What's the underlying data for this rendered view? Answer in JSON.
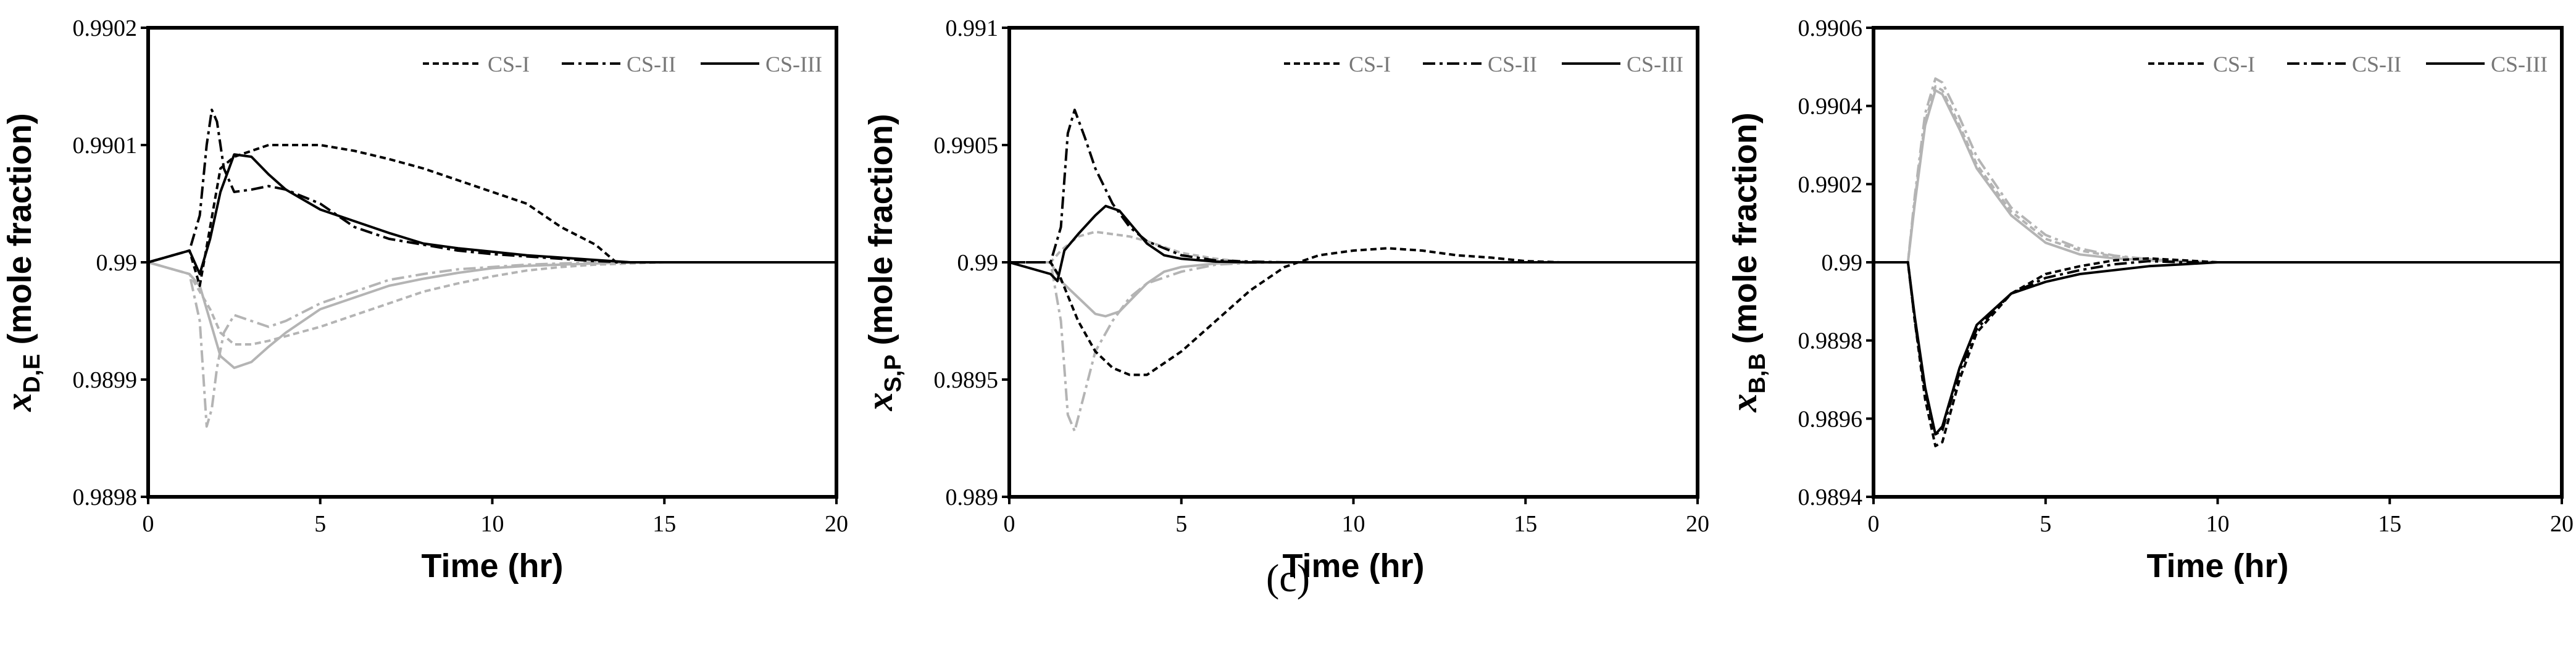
{
  "figure": {
    "caption": "(c)"
  },
  "chart_data": [
    {
      "type": "line",
      "id": "panel-1",
      "title": "",
      "xlabel": "Time (hr)",
      "ylabel_main": "x",
      "ylabel_sub": "D,E",
      "ylabel_rest": " (mole fraction)",
      "xlim": [
        0,
        20
      ],
      "ylim": [
        0.9898,
        0.9902
      ],
      "xticks": [
        0,
        5,
        10,
        15,
        20
      ],
      "yticks": [
        0.9898,
        0.9899,
        0.99,
        0.9901,
        0.9902
      ],
      "ytick_labels": [
        "0.9898",
        "0.9899",
        "0.99",
        "0.9901",
        "0.9902"
      ],
      "legend": [
        "CS-I",
        "CS-II",
        "CS-III"
      ],
      "legend_position": "top-right",
      "series": [
        {
          "name": "CS-I",
          "color": "black",
          "style": "dash",
          "x": [
            0,
            1.2,
            1.5,
            1.8,
            2.1,
            2.5,
            3,
            3.5,
            4,
            5,
            6,
            7,
            8,
            9,
            10,
            11,
            12,
            13,
            13.6,
            15,
            20
          ],
          "y": [
            0.99,
            0.99001,
            0.98998,
            0.99003,
            0.99008,
            0.99009,
            0.990095,
            0.9901,
            0.9901,
            0.9901,
            0.990095,
            0.990088,
            0.99008,
            0.99007,
            0.99006,
            0.99005,
            0.99003,
            0.990015,
            0.99,
            0.99,
            0.99
          ]
        },
        {
          "name": "CS-II",
          "color": "black",
          "style": "dashdot",
          "x": [
            0,
            1.2,
            1.5,
            1.7,
            1.85,
            2.0,
            2.2,
            2.5,
            3,
            3.5,
            4,
            5,
            6,
            7,
            8,
            9,
            10,
            11,
            12,
            13,
            14,
            20
          ],
          "y": [
            0.99,
            0.99001,
            0.99004,
            0.9901,
            0.99013,
            0.99012,
            0.99008,
            0.99006,
            0.990062,
            0.990065,
            0.990062,
            0.99005,
            0.99003,
            0.99002,
            0.990015,
            0.99001,
            0.990007,
            0.990005,
            0.990003,
            0.990001,
            0.99,
            0.99
          ]
        },
        {
          "name": "CS-III",
          "color": "black",
          "style": "solid",
          "x": [
            0,
            1.2,
            1.5,
            1.8,
            2.1,
            2.5,
            3,
            3.5,
            4,
            5,
            6,
            7,
            8,
            9,
            10,
            11,
            12,
            13,
            14,
            20
          ],
          "y": [
            0.99,
            0.99001,
            0.98999,
            0.99002,
            0.99006,
            0.990092,
            0.99009,
            0.990075,
            0.990062,
            0.990045,
            0.990035,
            0.990025,
            0.990016,
            0.990012,
            0.990009,
            0.990006,
            0.990004,
            0.990002,
            0.99,
            0.99
          ]
        },
        {
          "name": "CS-I (gray)",
          "color": "gray",
          "style": "dash",
          "x": [
            0,
            1.2,
            1.5,
            1.8,
            2.1,
            2.5,
            3,
            3.5,
            4,
            5,
            6,
            7,
            8,
            9,
            10,
            11,
            12,
            13,
            14,
            15,
            16,
            20
          ],
          "y": [
            0.99,
            0.98999,
            0.989975,
            0.98996,
            0.98994,
            0.98993,
            0.98993,
            0.989933,
            0.989937,
            0.989945,
            0.989955,
            0.989965,
            0.989975,
            0.989982,
            0.989988,
            0.989993,
            0.989996,
            0.989998,
            0.989999,
            0.99,
            0.99,
            0.99
          ]
        },
        {
          "name": "CS-II (gray)",
          "color": "gray",
          "style": "dashdot",
          "x": [
            0,
            1.2,
            1.5,
            1.7,
            1.85,
            2.0,
            2.2,
            2.5,
            3,
            3.5,
            4,
            5,
            6,
            7,
            8,
            9,
            10,
            11,
            12,
            13,
            14,
            20
          ],
          "y": [
            0.99,
            0.98999,
            0.98995,
            0.98986,
            0.989875,
            0.98991,
            0.98994,
            0.989955,
            0.98995,
            0.989945,
            0.98995,
            0.989965,
            0.989975,
            0.989985,
            0.98999,
            0.989994,
            0.989996,
            0.989998,
            0.989999,
            0.99,
            0.99,
            0.99
          ]
        },
        {
          "name": "CS-III (gray)",
          "color": "gray",
          "style": "solid",
          "x": [
            0,
            1.2,
            1.5,
            1.8,
            2.1,
            2.5,
            3,
            3.5,
            4,
            5,
            6,
            7,
            8,
            9,
            10,
            11,
            12,
            13,
            14,
            20
          ],
          "y": [
            0.99,
            0.98999,
            0.98998,
            0.98995,
            0.98992,
            0.98991,
            0.989915,
            0.989928,
            0.98994,
            0.98996,
            0.98997,
            0.98998,
            0.989986,
            0.989991,
            0.989995,
            0.989997,
            0.989998,
            0.989999,
            0.99,
            0.99
          ]
        }
      ]
    },
    {
      "type": "line",
      "id": "panel-2",
      "title": "",
      "xlabel": "Time (hr)",
      "ylabel_main": "x",
      "ylabel_sub": "S,P",
      "ylabel_rest": " (mole fraction)",
      "xlim": [
        0,
        20
      ],
      "ylim": [
        0.989,
        0.991
      ],
      "xticks": [
        0,
        5,
        10,
        15,
        20
      ],
      "yticks": [
        0.989,
        0.9895,
        0.99,
        0.9905,
        0.991
      ],
      "ytick_labels": [
        "0.989",
        "0.9895",
        "0.99",
        "0.9905",
        "0.991"
      ],
      "legend": [
        "CS-I",
        "CS-II",
        "CS-III"
      ],
      "legend_position": "top-right",
      "series": [
        {
          "name": "CS-I",
          "color": "black",
          "style": "dash",
          "x": [
            0,
            1.2,
            1.5,
            2,
            2.5,
            3,
            3.5,
            4,
            5,
            6,
            7,
            8,
            9,
            10,
            11,
            12,
            13,
            14,
            15,
            16,
            20
          ],
          "y": [
            0.99,
            0.99,
            0.98993,
            0.98975,
            0.98962,
            0.98955,
            0.98952,
            0.98952,
            0.98962,
            0.98975,
            0.98988,
            0.98998,
            0.99003,
            0.99005,
            0.99006,
            0.99005,
            0.99003,
            0.99002,
            0.990005,
            0.99,
            0.99
          ]
        },
        {
          "name": "CS-II",
          "color": "black",
          "style": "dashdot",
          "x": [
            0,
            1.2,
            1.5,
            1.7,
            1.9,
            2.2,
            2.5,
            3,
            3.5,
            4,
            5,
            6,
            7,
            8,
            20
          ],
          "y": [
            0.99,
            0.99,
            0.99015,
            0.99055,
            0.99065,
            0.99053,
            0.9904,
            0.99025,
            0.99015,
            0.99009,
            0.99003,
            0.990008,
            0.990003,
            0.99,
            0.99
          ]
        },
        {
          "name": "CS-III",
          "color": "black",
          "style": "solid",
          "x": [
            0,
            1.2,
            1.4,
            1.6,
            2,
            2.5,
            2.8,
            3.2,
            3.6,
            4,
            4.5,
            5,
            6,
            7,
            20
          ],
          "y": [
            0.99,
            0.98995,
            0.98992,
            0.99005,
            0.99012,
            0.9902,
            0.99024,
            0.99022,
            0.99015,
            0.99008,
            0.99003,
            0.990015,
            0.990003,
            0.99,
            0.99
          ]
        },
        {
          "name": "CS-I (gray)",
          "color": "gray",
          "style": "dash",
          "x": [
            0,
            1.2,
            1.5,
            2,
            2.5,
            3,
            3.5,
            4,
            5,
            6,
            7,
            20
          ],
          "y": [
            0.99,
            0.99,
            0.99005,
            0.99011,
            0.99013,
            0.99012,
            0.99011,
            0.99009,
            0.99004,
            0.990015,
            0.99,
            0.99
          ]
        },
        {
          "name": "CS-II (gray)",
          "color": "gray",
          "style": "dashdot",
          "x": [
            0,
            1.2,
            1.5,
            1.7,
            1.9,
            2.2,
            2.5,
            3,
            3.5,
            4,
            5,
            6,
            7,
            8,
            20
          ],
          "y": [
            0.99,
            0.99,
            0.98975,
            0.98935,
            0.98928,
            0.98945,
            0.98962,
            0.98975,
            0.98985,
            0.98991,
            0.98996,
            0.98999,
            0.989998,
            0.99,
            0.99
          ]
        },
        {
          "name": "CS-III (gray)",
          "color": "gray",
          "style": "solid",
          "x": [
            0,
            1.2,
            1.5,
            2,
            2.5,
            2.8,
            3.2,
            3.6,
            4,
            4.5,
            5,
            6,
            7,
            20
          ],
          "y": [
            0.99,
            0.99,
            0.98992,
            0.98985,
            0.98978,
            0.98977,
            0.98979,
            0.98985,
            0.98991,
            0.98996,
            0.98998,
            0.989995,
            0.99,
            0.99
          ]
        }
      ]
    },
    {
      "type": "line",
      "id": "panel-3",
      "title": "",
      "xlabel": "Time (hr)",
      "ylabel_main": "x",
      "ylabel_sub": "B,B",
      "ylabel_rest": " (mole fraction)",
      "xlim": [
        0,
        20
      ],
      "ylim": [
        0.9894,
        0.9906
      ],
      "xticks": [
        0,
        5,
        10,
        15,
        20
      ],
      "yticks": [
        0.9894,
        0.9896,
        0.9898,
        0.99,
        0.9902,
        0.9904,
        0.9906
      ],
      "ytick_labels": [
        "0.9894",
        "0.9896",
        "0.9898",
        "0.99",
        "0.9902",
        "0.9904",
        "0.9906"
      ],
      "legend": [
        "CS-I",
        "CS-II",
        "CS-III"
      ],
      "legend_position": "top-right",
      "series": [
        {
          "name": "CS-I",
          "color": "black",
          "style": "dash",
          "x": [
            0,
            1,
            1.2,
            1.5,
            1.8,
            2,
            2.5,
            3,
            4,
            5,
            6,
            7,
            8,
            9,
            10,
            20
          ],
          "y": [
            0.99,
            0.99,
            0.98985,
            0.98965,
            0.98953,
            0.98954,
            0.9897,
            0.98982,
            0.98992,
            0.98997,
            0.98999,
            0.990005,
            0.99001,
            0.990005,
            0.99,
            0.99
          ]
        },
        {
          "name": "CS-II",
          "color": "black",
          "style": "dashdot",
          "x": [
            0,
            1,
            1.2,
            1.5,
            1.8,
            2,
            2.5,
            3,
            4,
            5,
            6,
            7,
            8,
            9,
            10,
            20
          ],
          "y": [
            0.99,
            0.99,
            0.98985,
            0.98967,
            0.98956,
            0.98957,
            0.98972,
            0.98983,
            0.98992,
            0.98996,
            0.98998,
            0.989995,
            0.990003,
            0.99,
            0.99,
            0.99
          ]
        },
        {
          "name": "CS-III",
          "color": "black",
          "style": "solid",
          "x": [
            0,
            1,
            1.2,
            1.5,
            1.8,
            2,
            2.5,
            3,
            4,
            5,
            6,
            7,
            8,
            9,
            10,
            20
          ],
          "y": [
            0.99,
            0.99,
            0.98986,
            0.98968,
            0.98956,
            0.98958,
            0.98973,
            0.98984,
            0.98992,
            0.98995,
            0.98997,
            0.98998,
            0.98999,
            0.989995,
            0.99,
            0.99
          ]
        },
        {
          "name": "CS-I (gray)",
          "color": "gray",
          "style": "dash",
          "x": [
            0,
            1,
            1.2,
            1.5,
            1.8,
            2,
            2.5,
            3,
            4,
            5,
            6,
            7,
            8,
            9,
            10,
            20
          ],
          "y": [
            0.99,
            0.99,
            0.99016,
            0.99036,
            0.99045,
            0.99044,
            0.99035,
            0.99025,
            0.99013,
            0.99006,
            0.99003,
            0.990015,
            0.990007,
            0.990003,
            0.99,
            0.99
          ]
        },
        {
          "name": "CS-II (gray)",
          "color": "gray",
          "style": "dashdot",
          "x": [
            0,
            1,
            1.2,
            1.5,
            1.8,
            2,
            2.5,
            3,
            4,
            5,
            6,
            7,
            8,
            9,
            10,
            20
          ],
          "y": [
            0.99,
            0.99,
            0.99017,
            0.99038,
            0.99047,
            0.99046,
            0.99037,
            0.99027,
            0.99014,
            0.99007,
            0.990035,
            0.990017,
            0.990008,
            0.990003,
            0.99,
            0.99
          ]
        },
        {
          "name": "CS-III (gray)",
          "color": "gray",
          "style": "solid",
          "x": [
            0,
            1,
            1.2,
            1.5,
            1.8,
            2,
            2.5,
            3,
            4,
            5,
            6,
            7,
            8,
            9,
            10,
            20
          ],
          "y": [
            0.99,
            0.99,
            0.99015,
            0.99035,
            0.99044,
            0.99043,
            0.99034,
            0.99024,
            0.99012,
            0.99005,
            0.99002,
            0.99001,
            0.990005,
            0.990002,
            0.99,
            0.99
          ]
        }
      ]
    }
  ]
}
